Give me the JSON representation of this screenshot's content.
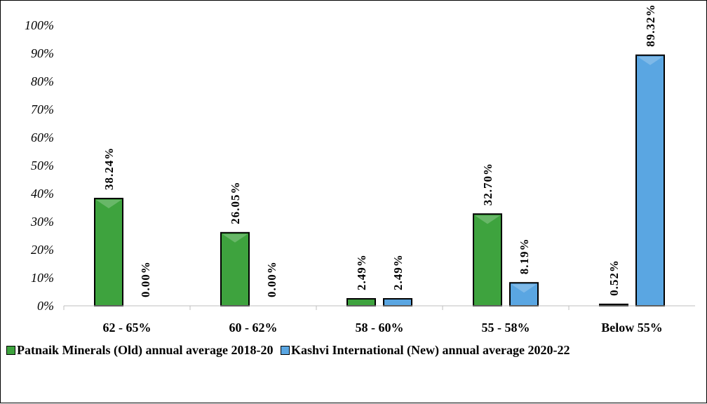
{
  "chart_data": {
    "type": "bar",
    "categories": [
      "62 - 65%",
      "60 - 62%",
      "58 - 60%",
      "55 - 58%",
      "Below 55%"
    ],
    "series": [
      {
        "name": "Patnaik Minerals (Old) annual average 2018-20",
        "values": [
          38.24,
          26.05,
          2.49,
          32.7,
          0.52
        ],
        "labels": [
          "38.24%",
          "26.05%",
          "2.49%",
          "32.70%",
          "0.52%"
        ],
        "color": "#3ea33e"
      },
      {
        "name": "Kashvi International (New) annual average 2020-22",
        "values": [
          0.0,
          0.0,
          2.49,
          8.19,
          89.32
        ],
        "labels": [
          "0.00%",
          "0.00%",
          "2.49%",
          "8.19%",
          "89.32%"
        ],
        "color": "#5aa6e2"
      }
    ],
    "yticks": [
      "0%",
      "10%",
      "20%",
      "30%",
      "40%",
      "50%",
      "60%",
      "70%",
      "80%",
      "90%",
      "100%"
    ],
    "ylim": [
      0,
      100
    ],
    "grid": false,
    "legend_position": "bottom"
  }
}
